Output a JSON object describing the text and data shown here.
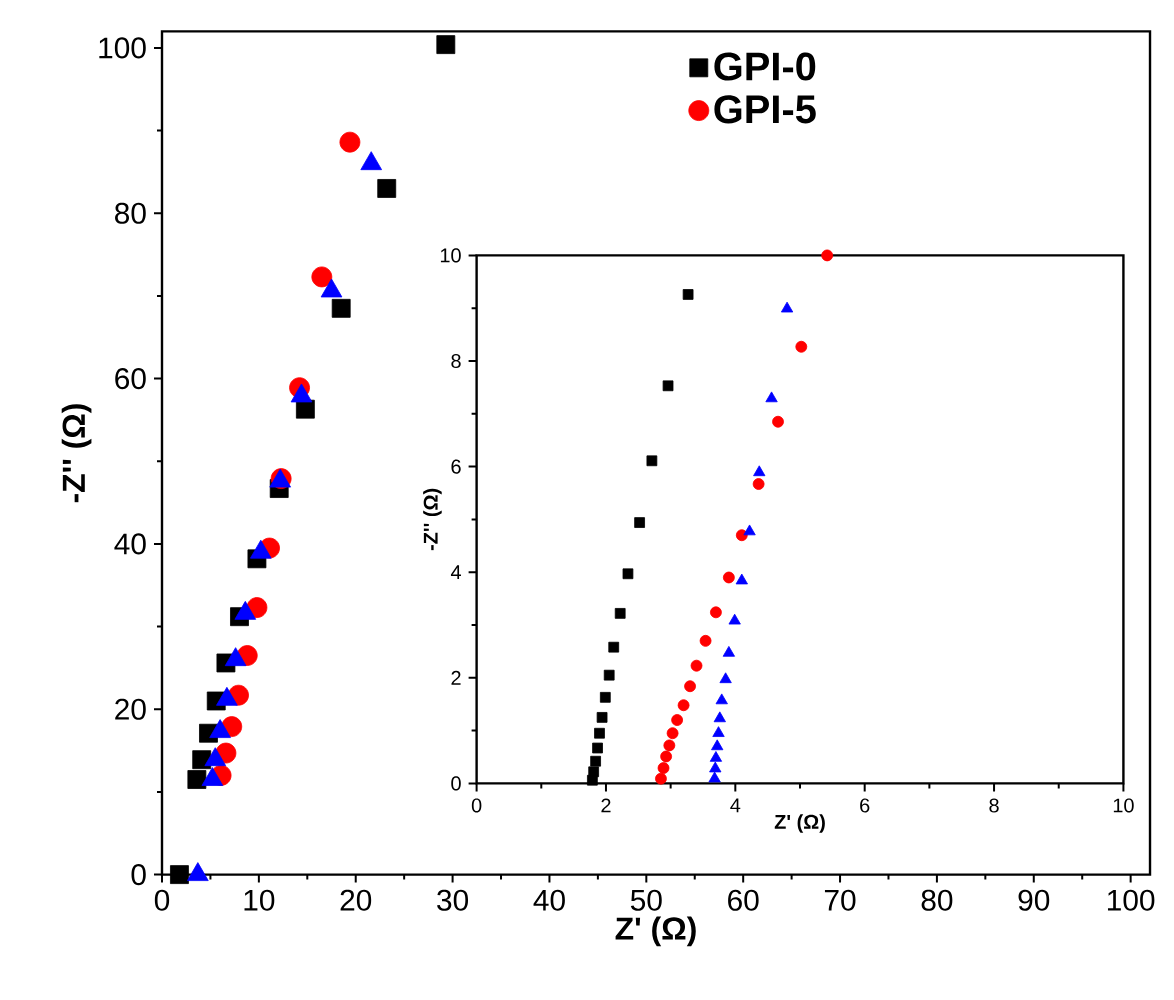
{
  "chart_data": [
    {
      "type": "scatter",
      "xlabel": "Z' (Ω)",
      "ylabel": "-Z'' (Ω)",
      "xlim": [
        0,
        102
      ],
      "ylim": [
        0,
        102
      ],
      "xticks": [
        0,
        10,
        20,
        30,
        40,
        50,
        60,
        70,
        80,
        90,
        100
      ],
      "yticks": [
        0,
        20,
        40,
        60,
        80,
        100
      ],
      "legend": "top",
      "grid": false,
      "series": [
        {
          "name": "GPI-0",
          "color": "#000000",
          "marker": "square",
          "x": [
            1.8,
            3.6,
            4.1,
            4.8,
            5.6,
            6.6,
            8.0,
            9.8,
            12.1,
            14.8,
            18.5,
            23.2,
            29.3
          ],
          "values": [
            0,
            11.5,
            13.9,
            17.1,
            21.0,
            25.6,
            31.2,
            38.2,
            46.7,
            56.3,
            68.5,
            83.0,
            100.4
          ]
        },
        {
          "name": "GPI-5",
          "color": "#ff0000",
          "marker": "circle",
          "x": [
            6.1,
            6.6,
            7.2,
            7.9,
            8.8,
            9.8,
            11.1,
            12.3,
            14.2,
            16.5,
            19.4
          ],
          "values": [
            12.0,
            14.7,
            17.9,
            21.7,
            26.5,
            32.3,
            39.5,
            47.9,
            58.9,
            72.3,
            88.6
          ]
        },
        {
          "color": "#0000ff",
          "marker": "triangle",
          "x": [
            3.7,
            5.2,
            5.5,
            6.0,
            6.7,
            7.6,
            8.6,
            10.2,
            12.2,
            14.4,
            17.5,
            21.6
          ],
          "values": [
            0,
            11.5,
            13.9,
            17.3,
            21.2,
            26.0,
            31.6,
            39.0,
            47.6,
            57.9,
            70.6,
            86.0
          ]
        }
      ]
    },
    {
      "type": "scatter",
      "xlabel": "Z' (Ω)",
      "ylabel": "-Z'' (Ω)",
      "xlim": [
        0,
        10
      ],
      "ylim": [
        0,
        10
      ],
      "xticks": [
        0,
        2,
        4,
        6,
        8,
        10
      ],
      "yticks": [
        0,
        2,
        4,
        6,
        8,
        10
      ],
      "grid": false,
      "series": [
        {
          "color": "#000000",
          "marker": "square",
          "x": [
            1.79,
            1.81,
            1.84,
            1.87,
            1.9,
            1.94,
            1.99,
            2.05,
            2.12,
            2.22,
            2.34,
            2.52,
            2.71,
            2.96,
            3.27
          ],
          "values": [
            0.06,
            0.22,
            0.42,
            0.67,
            0.95,
            1.25,
            1.63,
            2.05,
            2.58,
            3.22,
            3.97,
            4.94,
            6.11,
            7.53,
            9.26
          ]
        },
        {
          "color": "#ff0000",
          "marker": "circle",
          "x": [
            2.85,
            2.89,
            2.93,
            2.98,
            3.03,
            3.1,
            3.2,
            3.3,
            3.4,
            3.54,
            3.7,
            3.9,
            4.1,
            4.36,
            4.66,
            5.02,
            5.42
          ],
          "values": [
            0.09,
            0.29,
            0.51,
            0.72,
            0.95,
            1.2,
            1.48,
            1.84,
            2.23,
            2.7,
            3.24,
            3.9,
            4.7,
            5.67,
            6.85,
            8.27,
            10.0
          ]
        },
        {
          "color": "#0000ff",
          "marker": "triangle",
          "x": [
            3.68,
            3.69,
            3.7,
            3.72,
            3.74,
            3.76,
            3.79,
            3.85,
            3.9,
            3.99,
            4.1,
            4.22,
            4.37,
            4.56,
            4.8
          ],
          "values": [
            0.09,
            0.28,
            0.48,
            0.7,
            0.95,
            1.23,
            1.57,
            1.97,
            2.47,
            3.08,
            3.84,
            4.77,
            5.89,
            7.29,
            8.99
          ]
        }
      ]
    }
  ]
}
